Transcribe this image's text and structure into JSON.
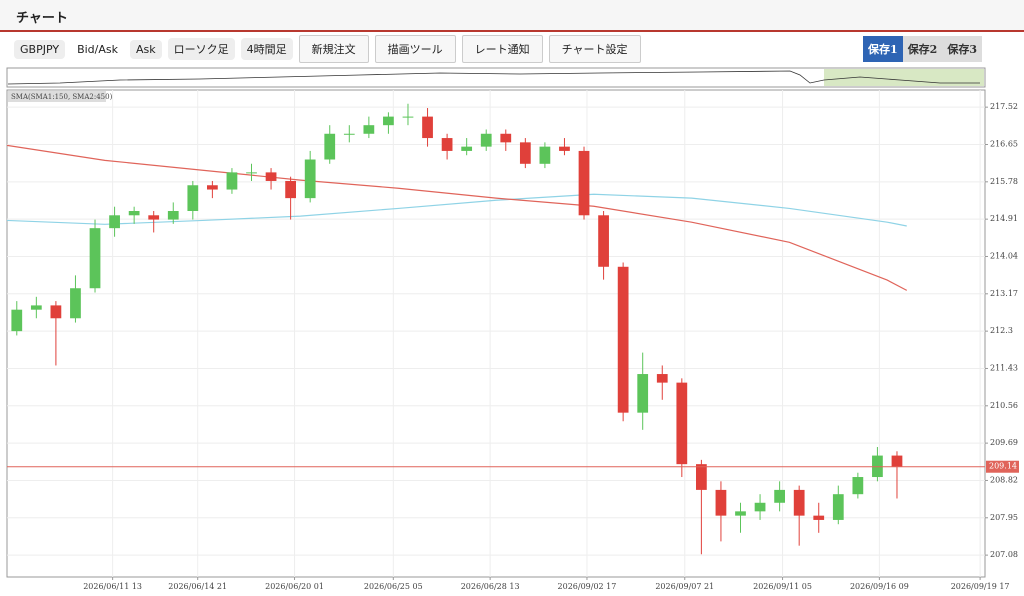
{
  "header": {
    "title": "チャート"
  },
  "toolbar": {
    "selects": [
      "GBPJPY",
      "Bid/Ask",
      "Ask",
      "ローソク足",
      "4時間足"
    ],
    "buttons": [
      "新規注文",
      "描画ツール",
      "レート通知",
      "チャート設定"
    ],
    "tabs": [
      "保存1",
      "保存2",
      "保存3"
    ],
    "active_tab": 0
  },
  "chart_data": {
    "type": "candlestick",
    "legend": "SMA(SMA1:150, SMA2:450)",
    "x": [
      1,
      3,
      5,
      7,
      9,
      11,
      13,
      15,
      17,
      19,
      21,
      23,
      25,
      27,
      29,
      31,
      33,
      35,
      37,
      39,
      41,
      43,
      45,
      47,
      49,
      51,
      53,
      55,
      57,
      59,
      61,
      63,
      65,
      67,
      69,
      71,
      73,
      75,
      77,
      79,
      81,
      83,
      85,
      87,
      89,
      91
    ],
    "open": [
      212.3,
      212.8,
      212.9,
      212.6,
      213.3,
      214.7,
      215.0,
      215.0,
      214.9,
      215.1,
      215.7,
      215.6,
      216.0,
      216.0,
      215.8,
      215.4,
      216.3,
      216.9,
      216.9,
      217.1,
      217.3,
      217.3,
      216.8,
      216.5,
      216.6,
      216.9,
      216.7,
      216.2,
      216.6,
      216.5,
      215.0,
      213.8,
      210.4,
      211.3,
      211.1,
      209.2,
      208.6,
      208.0,
      208.1,
      208.3,
      208.6,
      208.0,
      207.9,
      208.5,
      208.9,
      209.4
    ],
    "high": [
      213.0,
      213.1,
      213.0,
      213.6,
      214.9,
      215.2,
      215.2,
      215.1,
      215.3,
      215.8,
      215.8,
      216.1,
      216.2,
      216.1,
      215.9,
      216.5,
      217.1,
      217.1,
      217.3,
      217.4,
      217.6,
      217.5,
      216.9,
      216.8,
      217.0,
      217.0,
      216.8,
      216.7,
      216.8,
      216.6,
      215.1,
      213.9,
      211.8,
      211.5,
      211.2,
      209.3,
      208.8,
      208.3,
      208.5,
      208.8,
      208.7,
      208.3,
      208.7,
      209.0,
      209.6,
      209.5
    ],
    "low": [
      212.2,
      212.6,
      211.5,
      212.5,
      213.2,
      214.5,
      214.8,
      214.6,
      214.8,
      214.9,
      215.4,
      215.5,
      215.8,
      215.6,
      214.9,
      215.3,
      216.2,
      216.7,
      216.8,
      216.9,
      217.1,
      216.6,
      216.3,
      216.4,
      216.5,
      216.5,
      216.1,
      216.1,
      216.4,
      214.9,
      213.5,
      210.2,
      210.0,
      210.7,
      208.9,
      207.1,
      207.4,
      207.6,
      207.9,
      208.1,
      207.3,
      207.6,
      207.8,
      208.4,
      208.8,
      208.4
    ],
    "close": [
      212.8,
      212.9,
      212.6,
      213.3,
      214.7,
      215.0,
      215.1,
      214.9,
      215.1,
      215.7,
      215.6,
      216.0,
      216.0,
      215.8,
      215.4,
      216.3,
      216.9,
      216.9,
      217.1,
      217.3,
      217.3,
      216.8,
      216.5,
      216.6,
      216.9,
      216.7,
      216.2,
      216.6,
      216.5,
      215.0,
      213.8,
      210.4,
      211.3,
      211.1,
      209.2,
      208.6,
      208.0,
      208.1,
      208.3,
      208.6,
      208.0,
      207.9,
      208.5,
      208.9,
      209.4,
      209.14
    ],
    "up_color": "#5cc45a",
    "down_color": "#e0403a",
    "lines": [
      {
        "color": "#8fd3e6",
        "x": [
          0,
          10,
          20,
          30,
          40,
          50,
          60,
          70,
          80,
          90,
          92
        ],
        "values": [
          214.88,
          214.79,
          214.88,
          214.98,
          215.16,
          215.35,
          215.49,
          215.4,
          215.16,
          214.84,
          214.75
        ]
      },
      {
        "color": "#e0645a",
        "x": [
          0,
          10,
          20,
          30,
          40,
          50,
          60,
          70,
          80,
          90,
          92
        ],
        "values": [
          216.63,
          216.28,
          216.05,
          215.82,
          215.63,
          215.4,
          215.21,
          214.84,
          214.37,
          213.49,
          213.25
        ]
      }
    ],
    "current_price": {
      "value": 209.14,
      "label": "209.14",
      "color": "#e0645a"
    },
    "xlim": [
      0,
      100
    ],
    "xticks": [
      {
        "value": 10.8,
        "label": "2026/06/11 13"
      },
      {
        "value": 19.5,
        "label": "2026/06/14 21"
      },
      {
        "value": 29.4,
        "label": "2026/06/20 01"
      },
      {
        "value": 39.5,
        "label": "2026/06/25 05"
      },
      {
        "value": 49.4,
        "label": "2026/06/28 13"
      },
      {
        "value": 59.3,
        "label": "2026/09/02 17"
      },
      {
        "value": 69.3,
        "label": "2026/09/07 21"
      },
      {
        "value": 79.3,
        "label": "2026/09/11 05"
      },
      {
        "value": 89.2,
        "label": "2026/09/16 09"
      },
      {
        "value": 99.5,
        "label": "2026/09/19 17"
      }
    ],
    "ylim": [
      206.57,
      217.92
    ],
    "yticks": [
      217.52,
      216.65,
      215.78,
      214.91,
      214.04,
      213.17,
      212.3,
      211.43,
      210.56,
      209.69,
      208.82,
      207.95,
      207.08
    ],
    "grid": true
  }
}
